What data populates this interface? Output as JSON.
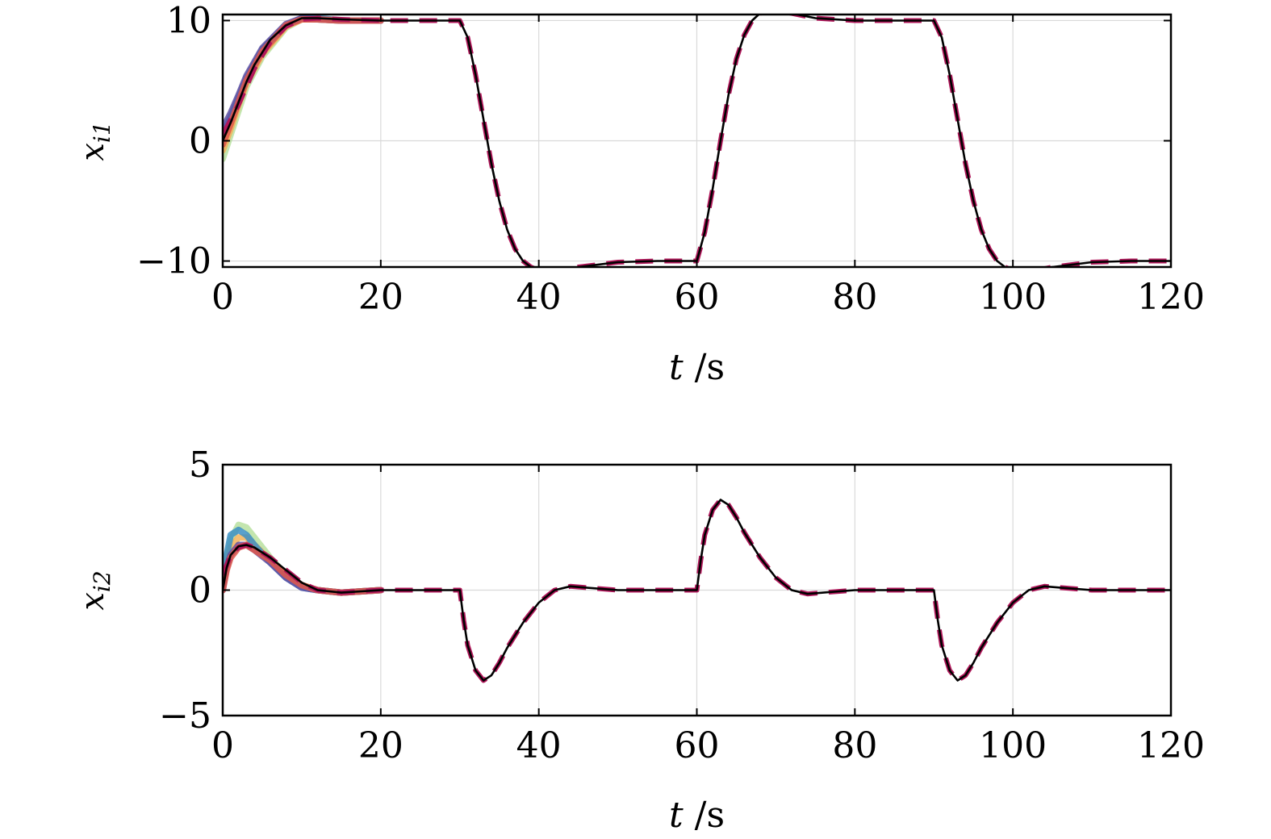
{
  "chart_data": [
    {
      "type": "line",
      "xlabel": "t /s",
      "ylabel_base": "x",
      "ylabel_sub": "i1",
      "xlim": [
        0,
        120
      ],
      "ylim": [
        -10.5,
        10.5
      ],
      "xticks": [
        0,
        20,
        40,
        60,
        80,
        100,
        120
      ],
      "xtick_labels": [
        "0",
        "20",
        "40",
        "60",
        "80",
        "100",
        "120"
      ],
      "yticks": [
        -10,
        0,
        10
      ],
      "ytick_labels": [
        "−10",
        "0",
        "10"
      ],
      "grid": true,
      "series": [
        {
          "role": "agent",
          "color": "#b8e0a0",
          "x": [
            0,
            1,
            2,
            3,
            5,
            8,
            10,
            12,
            15,
            20
          ],
          "y": [
            -1.5,
            0.5,
            2.5,
            4.5,
            7.0,
            9.4,
            10.1,
            10.1,
            10.0,
            10.0
          ]
        },
        {
          "role": "agent",
          "color": "#f3b35a",
          "x": [
            0,
            1,
            2,
            3,
            5,
            8,
            10,
            12,
            15,
            20
          ],
          "y": [
            -0.8,
            1.0,
            3.0,
            4.8,
            7.2,
            9.5,
            10.1,
            10.1,
            10.0,
            10.0
          ]
        },
        {
          "role": "agent",
          "color": "#3b8fc4",
          "x": [
            0,
            1,
            2,
            3,
            5,
            8,
            10,
            12,
            15,
            20
          ],
          "y": [
            0.5,
            2.0,
            3.6,
            5.2,
            7.6,
            9.6,
            10.2,
            10.2,
            10.0,
            10.0
          ]
        },
        {
          "role": "agent",
          "color": "#5e4fa2",
          "x": [
            0,
            1,
            2,
            3,
            5,
            8,
            10,
            12,
            15,
            20
          ],
          "y": [
            1.0,
            2.3,
            3.8,
            5.4,
            7.7,
            9.7,
            10.2,
            10.1,
            10.0,
            10.0
          ]
        },
        {
          "role": "agent",
          "color": "#e0574a",
          "x": [
            0,
            1,
            2,
            3,
            5,
            8,
            10,
            12,
            15,
            20
          ],
          "y": [
            -0.3,
            1.4,
            3.2,
            5.0,
            7.4,
            9.6,
            10.1,
            10.1,
            10.0,
            10.0
          ]
        },
        {
          "role": "follower",
          "color": "#b0175a",
          "dashed": true,
          "x": [
            0,
            2,
            4,
            6,
            8,
            10,
            12,
            15,
            20,
            25,
            30,
            31,
            32,
            33,
            34,
            35,
            36,
            37,
            38,
            39,
            40,
            42,
            45,
            50,
            55,
            60,
            61,
            62,
            63,
            64,
            65,
            66,
            67,
            68,
            69,
            70,
            72,
            75,
            80,
            85,
            90,
            91,
            92,
            93,
            94,
            95,
            96,
            97,
            98,
            99,
            100,
            102,
            105,
            110,
            115,
            120
          ],
          "y": [
            0.5,
            3.0,
            6.0,
            8.2,
            9.5,
            10.1,
            10.2,
            10.1,
            10.0,
            10.0,
            10.0,
            8.6,
            5.5,
            1.8,
            -1.9,
            -5.0,
            -7.4,
            -9.0,
            -10.0,
            -10.5,
            -10.8,
            -10.9,
            -10.5,
            -10.1,
            -10.0,
            -10.0,
            -7.6,
            -4.0,
            0.0,
            3.8,
            6.8,
            8.8,
            10.0,
            10.6,
            10.8,
            10.8,
            10.6,
            10.2,
            10.0,
            10.0,
            10.0,
            8.6,
            5.5,
            1.8,
            -1.9,
            -5.0,
            -7.4,
            -9.0,
            -10.0,
            -10.5,
            -10.8,
            -10.9,
            -10.5,
            -10.1,
            -10.0,
            -10.0
          ]
        },
        {
          "role": "leader",
          "color": "#000000",
          "dashed": false,
          "x": [
            0,
            1,
            2,
            3,
            4,
            6,
            8,
            10,
            12,
            15,
            20,
            25,
            30,
            31,
            32,
            33,
            34,
            35,
            36,
            37,
            38,
            39,
            40,
            42,
            45,
            50,
            55,
            60,
            61,
            62,
            63,
            64,
            65,
            66,
            67,
            68,
            69,
            70,
            72,
            75,
            80,
            85,
            90,
            91,
            92,
            93,
            94,
            95,
            96,
            97,
            98,
            99,
            100,
            102,
            105,
            110,
            115,
            120
          ],
          "y": [
            0.0,
            1.5,
            3.2,
            4.9,
            6.3,
            8.4,
            9.6,
            10.2,
            10.2,
            10.1,
            10.0,
            10.0,
            10.0,
            8.6,
            5.5,
            1.8,
            -1.9,
            -5.0,
            -7.4,
            -9.0,
            -10.0,
            -10.5,
            -10.8,
            -10.9,
            -10.5,
            -10.1,
            -10.0,
            -10.0,
            -7.6,
            -4.0,
            0.0,
            3.8,
            6.8,
            8.8,
            10.0,
            10.6,
            10.8,
            10.8,
            10.6,
            10.2,
            10.0,
            10.0,
            10.0,
            8.6,
            5.5,
            1.8,
            -1.9,
            -5.0,
            -7.4,
            -9.0,
            -10.0,
            -10.5,
            -10.8,
            -10.9,
            -10.5,
            -10.1,
            -10.0,
            -10.0
          ]
        }
      ]
    },
    {
      "type": "line",
      "xlabel": "t /s",
      "ylabel_base": "x",
      "ylabel_sub": "i2",
      "xlim": [
        0,
        120
      ],
      "ylim": [
        -5,
        5
      ],
      "xticks": [
        0,
        20,
        40,
        60,
        80,
        100,
        120
      ],
      "xtick_labels": [
        "0",
        "20",
        "40",
        "60",
        "80",
        "100",
        "120"
      ],
      "yticks": [
        -5,
        0,
        5
      ],
      "ytick_labels": [
        "−5",
        "0",
        "5"
      ],
      "grid": true,
      "series": [
        {
          "role": "agent",
          "color": "#b8e0a0",
          "x": [
            0,
            0.5,
            1,
            2,
            3,
            4,
            6,
            8,
            10,
            12,
            15,
            20
          ],
          "y": [
            0.0,
            1.2,
            2.0,
            2.6,
            2.5,
            2.1,
            1.3,
            0.6,
            0.2,
            0.0,
            -0.1,
            0.0
          ]
        },
        {
          "role": "agent",
          "color": "#f3b35a",
          "x": [
            0,
            0.5,
            1,
            2,
            3,
            4,
            6,
            8,
            10,
            12,
            15,
            20
          ],
          "y": [
            0.0,
            1.0,
            1.7,
            2.1,
            2.1,
            1.8,
            1.2,
            0.6,
            0.2,
            0.0,
            -0.1,
            0.0
          ]
        },
        {
          "role": "agent",
          "color": "#3b8fc4",
          "x": [
            0,
            0.5,
            1,
            2,
            3,
            4,
            6,
            8,
            10,
            12,
            15,
            20
          ],
          "y": [
            0.0,
            1.4,
            2.2,
            2.4,
            2.2,
            1.8,
            1.1,
            0.5,
            0.1,
            0.0,
            -0.1,
            0.0
          ]
        },
        {
          "role": "agent",
          "color": "#5e4fa2",
          "x": [
            0,
            0.5,
            1,
            2,
            3,
            4,
            6,
            8,
            10,
            12,
            15,
            20
          ],
          "y": [
            0.0,
            0.9,
            1.4,
            1.8,
            1.8,
            1.6,
            1.1,
            0.5,
            0.1,
            0.0,
            -0.1,
            0.0
          ]
        },
        {
          "role": "agent",
          "color": "#e0574a",
          "x": [
            0,
            0.5,
            1,
            2,
            3,
            4,
            6,
            8,
            10,
            12,
            15,
            20
          ],
          "y": [
            0.0,
            0.8,
            1.3,
            1.7,
            1.8,
            1.6,
            1.2,
            0.6,
            0.2,
            0.0,
            -0.1,
            0.0
          ]
        },
        {
          "role": "follower",
          "color": "#b0175a",
          "dashed": true,
          "x": [
            0,
            1,
            2,
            3,
            4,
            6,
            8,
            10,
            12,
            15,
            20,
            25,
            30,
            30.5,
            31,
            32,
            33,
            34,
            35,
            36,
            38,
            40,
            42,
            44,
            46,
            50,
            55,
            60,
            60.5,
            61,
            62,
            63,
            64,
            65,
            66,
            68,
            70,
            72,
            74,
            76,
            80,
            85,
            90,
            90.5,
            91,
            92,
            93,
            94,
            95,
            96,
            98,
            100,
            102,
            104,
            106,
            110,
            115,
            120
          ],
          "y": [
            0.6,
            1.4,
            1.7,
            1.8,
            1.7,
            1.3,
            0.8,
            0.3,
            0.0,
            -0.1,
            0.0,
            0.0,
            0.0,
            -1.2,
            -2.2,
            -3.2,
            -3.6,
            -3.4,
            -2.9,
            -2.3,
            -1.3,
            -0.5,
            0.0,
            0.15,
            0.1,
            0.0,
            0.0,
            0.0,
            1.2,
            2.2,
            3.2,
            3.6,
            3.4,
            2.9,
            2.3,
            1.3,
            0.5,
            0.0,
            -0.15,
            -0.1,
            0.0,
            0.0,
            0.0,
            -1.2,
            -2.2,
            -3.2,
            -3.6,
            -3.4,
            -2.9,
            -2.3,
            -1.3,
            -0.5,
            0.0,
            0.15,
            0.1,
            0.0,
            0.0,
            0.0
          ]
        },
        {
          "role": "leader",
          "color": "#000000",
          "dashed": false,
          "x": [
            0,
            0.5,
            1,
            2,
            3,
            4,
            6,
            8,
            10,
            12,
            15,
            20,
            25,
            30,
            30.5,
            31,
            32,
            33,
            34,
            35,
            36,
            38,
            40,
            42,
            44,
            46,
            50,
            55,
            60,
            60.5,
            61,
            62,
            63,
            64,
            65,
            66,
            68,
            70,
            72,
            74,
            76,
            80,
            85,
            90,
            90.5,
            91,
            92,
            93,
            94,
            95,
            96,
            98,
            100,
            102,
            104,
            106,
            110,
            115,
            120
          ],
          "y": [
            0.0,
            0.9,
            1.4,
            1.75,
            1.8,
            1.7,
            1.3,
            0.8,
            0.3,
            0.0,
            -0.1,
            0.0,
            0.0,
            0.0,
            -1.2,
            -2.2,
            -3.2,
            -3.6,
            -3.4,
            -2.9,
            -2.3,
            -1.3,
            -0.5,
            0.0,
            0.15,
            0.1,
            0.0,
            0.0,
            0.0,
            1.2,
            2.2,
            3.2,
            3.6,
            3.4,
            2.9,
            2.3,
            1.3,
            0.5,
            0.0,
            -0.15,
            -0.1,
            0.0,
            0.0,
            0.0,
            -1.2,
            -2.2,
            -3.2,
            -3.6,
            -3.4,
            -2.9,
            -2.3,
            -1.3,
            -0.5,
            0.0,
            0.15,
            0.1,
            0.0,
            0.0,
            0.0
          ]
        }
      ]
    }
  ]
}
